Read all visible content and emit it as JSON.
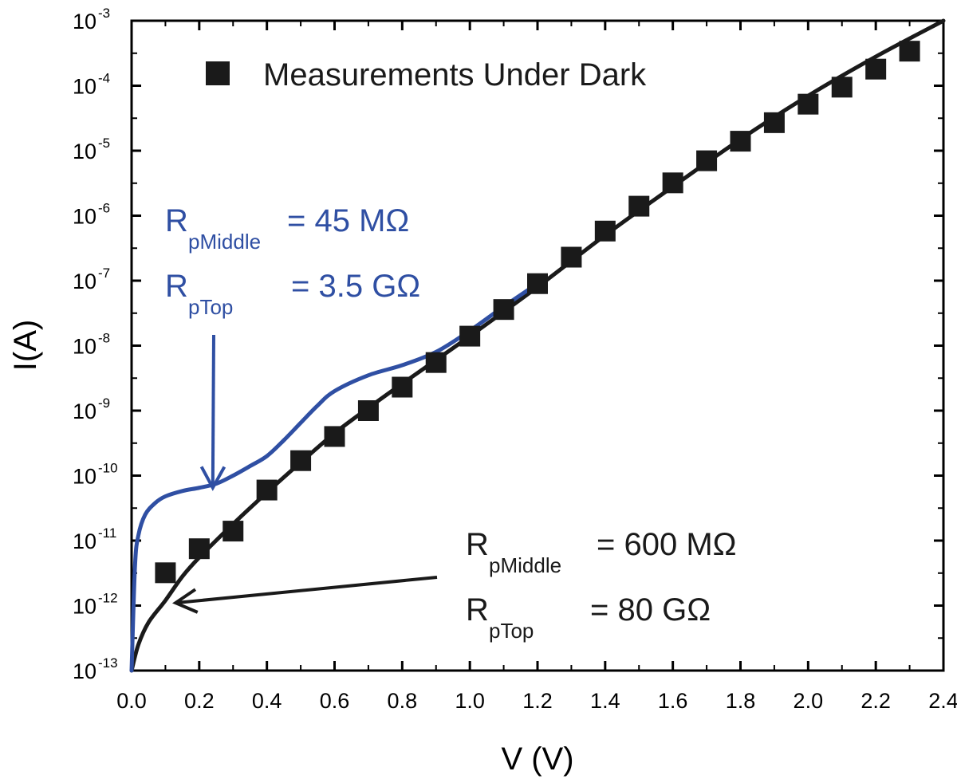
{
  "chart_data": {
    "type": "scatter",
    "title": "",
    "xlabel": "V (V)",
    "ylabel": "I(A)",
    "xlim": [
      0.0,
      2.4
    ],
    "ylim": [
      1e-13,
      0.001
    ],
    "yscale": "log",
    "grid": false,
    "x_ticks": [
      "0.0",
      "0.2",
      "0.4",
      "0.6",
      "0.8",
      "1.0",
      "1.2",
      "1.4",
      "1.6",
      "1.8",
      "2.0",
      "2.2",
      "2.4"
    ],
    "y_ticks": [
      {
        "base": "10",
        "exp": "-13",
        "value": 1e-13
      },
      {
        "base": "10",
        "exp": "-12",
        "value": 1e-12
      },
      {
        "base": "10",
        "exp": "-11",
        "value": 1e-11
      },
      {
        "base": "10",
        "exp": "-10",
        "value": 1e-10
      },
      {
        "base": "10",
        "exp": "-9",
        "value": 1e-09
      },
      {
        "base": "10",
        "exp": "-8",
        "value": 1e-08
      },
      {
        "base": "10",
        "exp": "-7",
        "value": 1e-07
      },
      {
        "base": "10",
        "exp": "-6",
        "value": 1e-06
      },
      {
        "base": "10",
        "exp": "-5",
        "value": 1e-05
      },
      {
        "base": "10",
        "exp": "-4",
        "value": 0.0001
      },
      {
        "base": "10",
        "exp": "-3",
        "value": 0.001
      }
    ],
    "legend": {
      "entries": [
        "Measurements Under Dark"
      ],
      "position": "top-left"
    },
    "series": [
      {
        "name": "Measurements Under Dark",
        "kind": "markers",
        "marker": "square",
        "color": "#1a1a1a",
        "x": [
          0.1,
          0.2,
          0.3,
          0.4,
          0.5,
          0.6,
          0.7,
          0.8,
          0.9,
          1.0,
          1.1,
          1.2,
          1.3,
          1.4,
          1.5,
          1.6,
          1.7,
          1.8,
          1.9,
          2.0,
          2.1,
          2.2,
          2.3
        ],
        "y": [
          3.2e-12,
          7.5e-12,
          1.4e-11,
          6e-11,
          1.7e-10,
          4e-10,
          1e-09,
          2.3e-09,
          5.5e-09,
          1.4e-08,
          3.6e-08,
          9e-08,
          2.3e-07,
          5.8e-07,
          1.4e-06,
          3.2e-06,
          7e-06,
          1.4e-05,
          2.7e-05,
          5.2e-05,
          9.5e-05,
          0.00018,
          0.00034
        ]
      },
      {
        "kind": "line",
        "color": "#1a1a1a",
        "x": [
          0.0,
          0.02,
          0.05,
          0.1,
          0.15,
          0.2,
          0.3,
          0.4,
          0.5,
          0.6,
          0.7,
          0.8,
          0.9,
          1.0,
          1.2,
          1.4,
          1.6,
          1.8,
          2.0,
          2.2,
          2.4
        ],
        "y": [
          1e-13,
          2.5e-13,
          5.5e-13,
          1.2e-12,
          2.8e-12,
          5.5e-12,
          1.8e-11,
          5.5e-11,
          1.6e-10,
          4.5e-10,
          1.1e-09,
          2.6e-09,
          6e-09,
          1.4e-08,
          8e-08,
          5e-07,
          2.8e-06,
          1.5e-05,
          7e-05,
          0.00028,
          0.001
        ]
      },
      {
        "kind": "line",
        "color": "#2f4fa3",
        "x": [
          0.0,
          0.01,
          0.02,
          0.04,
          0.07,
          0.1,
          0.15,
          0.2,
          0.25,
          0.3,
          0.35,
          0.4,
          0.45,
          0.5,
          0.55,
          0.6,
          0.7,
          0.8,
          0.9,
          1.0,
          1.1,
          1.2
        ],
        "y": [
          1e-13,
          4e-12,
          1.2e-11,
          2.5e-11,
          3.8e-11,
          4.8e-11,
          5.8e-11,
          6.5e-11,
          7.5e-11,
          1e-10,
          1.4e-10,
          2e-10,
          3.5e-10,
          6.5e-10,
          1.2e-09,
          2e-09,
          3.5e-09,
          5e-09,
          8e-09,
          1.7e-08,
          4e-08,
          9e-08
        ]
      }
    ],
    "annotations": [
      {
        "color": "#2f4fa3",
        "lines": [
          {
            "main": "R",
            "sub": "pMiddle",
            "value": "= 45 MΩ"
          },
          {
            "main": "R",
            "sub": "pTop",
            "value": "= 3.5 GΩ"
          }
        ],
        "arrow_to": {
          "x": 0.24,
          "y": 6.5e-11
        }
      },
      {
        "color": "#1a1a1a",
        "lines": [
          {
            "main": "R",
            "sub": "pMiddle",
            "value": "= 600 MΩ"
          },
          {
            "main": "R",
            "sub": "pTop",
            "value": "= 80 GΩ"
          }
        ],
        "arrow_to": {
          "x": 0.13,
          "y": 1.1e-12
        }
      }
    ]
  }
}
